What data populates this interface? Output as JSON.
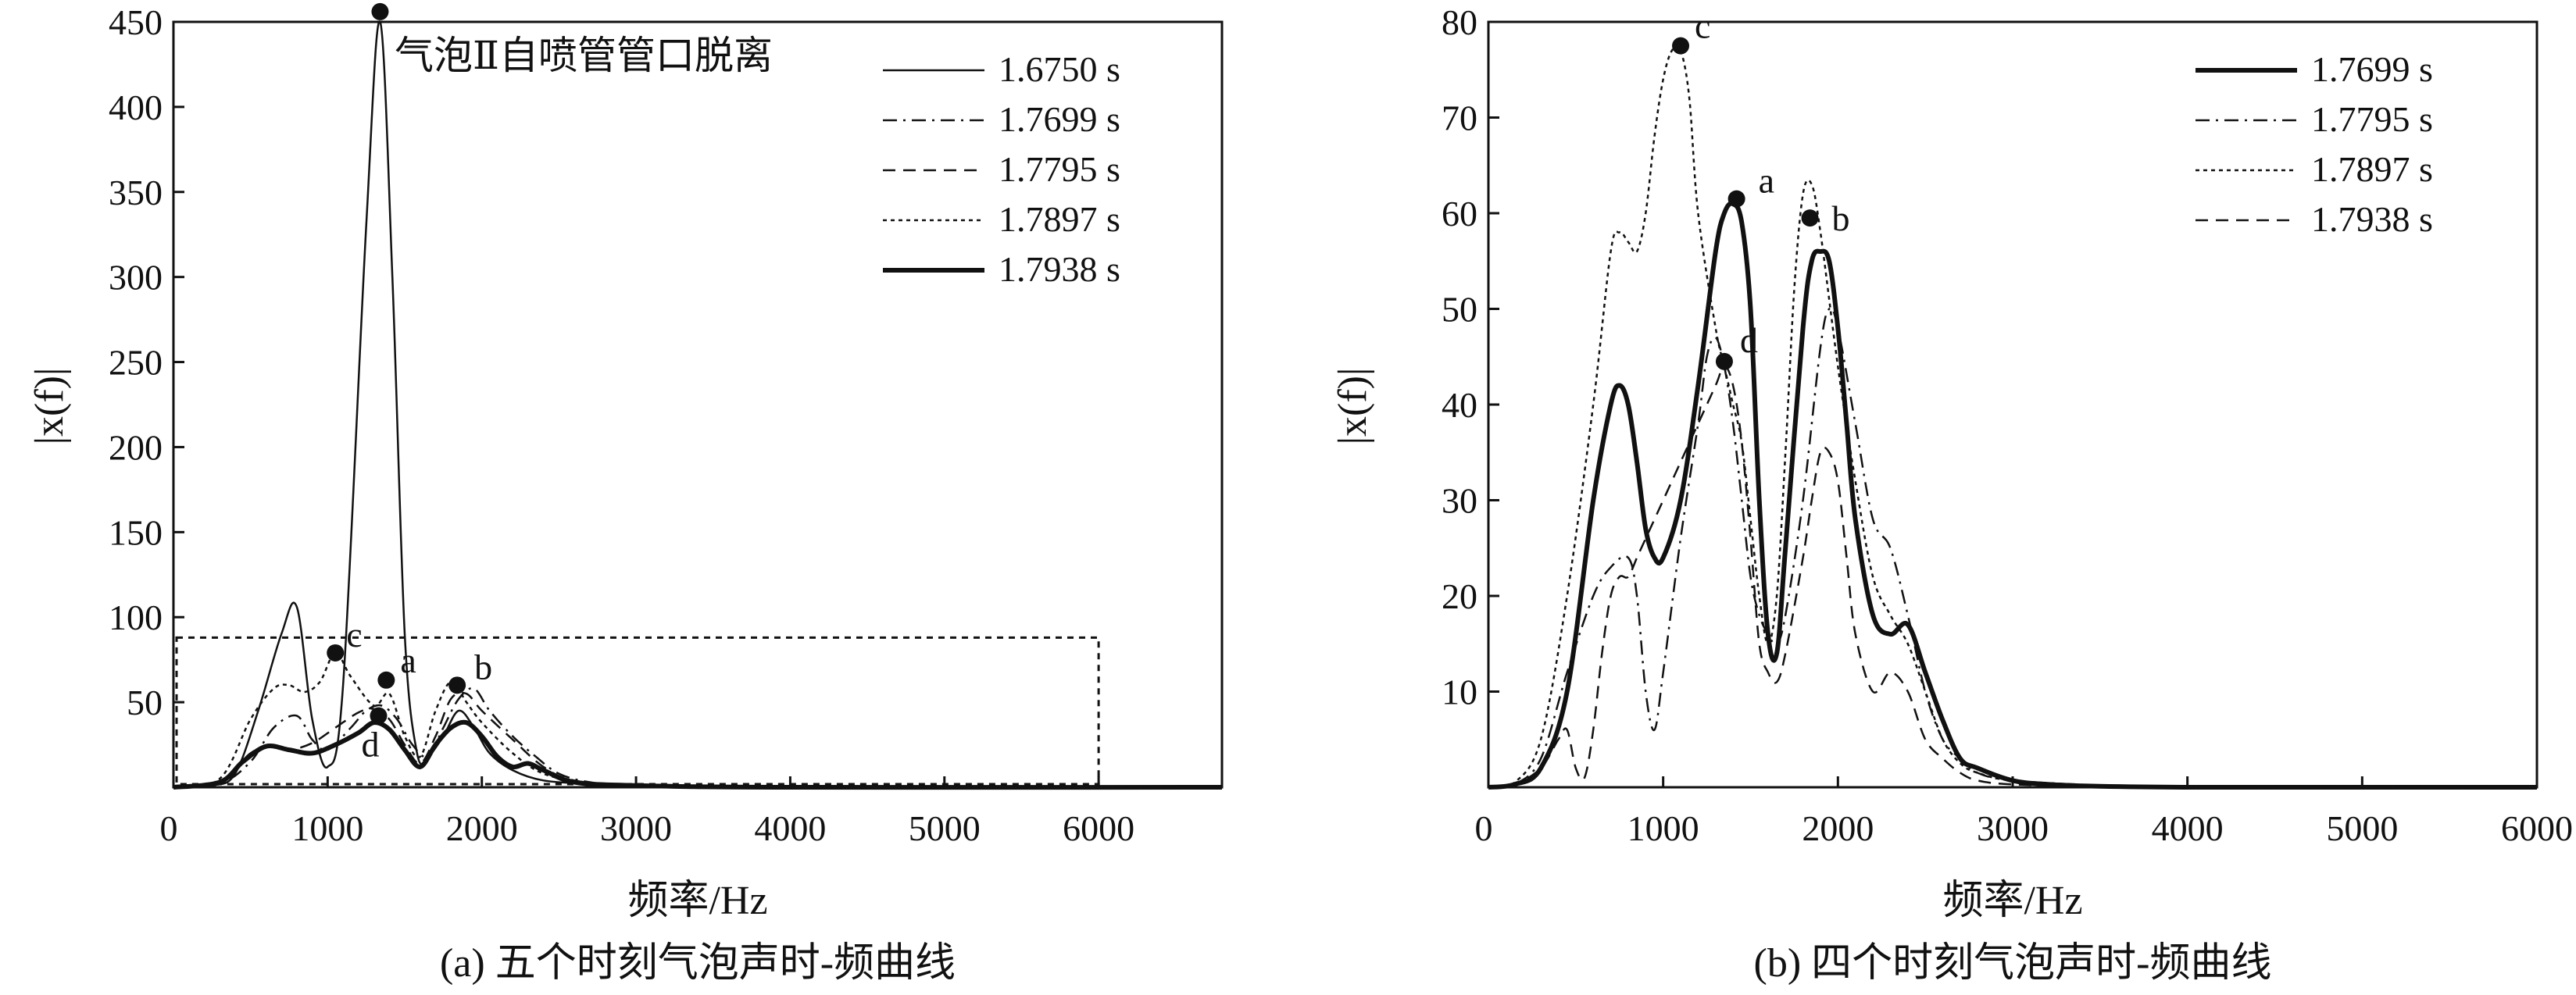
{
  "charts": [
    {
      "id": "a",
      "caption": "(a) 五个时刻气泡声时-频曲线",
      "annotation": "气泡Ⅱ自喷管管口脱离",
      "x_ticks": [
        "0",
        "1000",
        "2000",
        "3000",
        "4000",
        "5000",
        "6000"
      ],
      "y_ticks": [
        "50",
        "100",
        "150",
        "200",
        "250",
        "300",
        "350",
        "400",
        "450"
      ],
      "legend": [
        {
          "label": "1.6750 s",
          "style": "solid"
        },
        {
          "label": "1.7699 s",
          "style": "dashdot"
        },
        {
          "label": "1.7795 s",
          "style": "dashed"
        },
        {
          "label": "1.7897 s",
          "style": "dotted"
        },
        {
          "label": "1.7938 s",
          "style": "thick"
        }
      ],
      "markers": [
        {
          "label": "c",
          "x": 1050,
          "y": 79
        },
        {
          "label": "a",
          "x": 1380,
          "y": 63
        },
        {
          "label": "b",
          "x": 1840,
          "y": 60
        },
        {
          "label": "d",
          "x": 1330,
          "y": 42
        },
        {
          "label": "",
          "x": 1340,
          "y": 456
        }
      ]
    },
    {
      "id": "b",
      "caption": "(b) 四个时刻气泡声时-频曲线",
      "x_ticks": [
        "0",
        "1000",
        "2000",
        "3000",
        "4000",
        "5000",
        "6000"
      ],
      "y_ticks": [
        "10",
        "20",
        "30",
        "40",
        "50",
        "60",
        "70",
        "80"
      ],
      "legend": [
        {
          "label": "1.7699 s",
          "style": "thick"
        },
        {
          "label": "1.7795 s",
          "style": "dashdot"
        },
        {
          "label": "1.7897 s",
          "style": "dotted"
        },
        {
          "label": "1.7938 s",
          "style": "dashed"
        }
      ],
      "markers": [
        {
          "label": "c",
          "x": 1100,
          "y": 77.5
        },
        {
          "label": "a",
          "x": 1420,
          "y": 61.5
        },
        {
          "label": "b",
          "x": 1840,
          "y": 59.5
        },
        {
          "label": "d",
          "x": 1350,
          "y": 44.5
        }
      ]
    }
  ],
  "axis_labels": {
    "x": "频率/Hz",
    "y": "|x(f)|"
  },
  "chart_data": [
    {
      "type": "line",
      "title": "",
      "xlabel": "频率/Hz",
      "ylabel": "|x(f)|",
      "xlim": [
        0,
        6800
      ],
      "ylim": [
        0,
        450
      ],
      "grid": false,
      "legend_position": "top-right",
      "series": [
        {
          "name": "1.6750 s",
          "x": [
            0,
            250,
            400,
            550,
            700,
            800,
            900,
            1000,
            1100,
            1250,
            1340,
            1420,
            1500,
            1580,
            1650,
            1750,
            1850,
            1950,
            2050,
            2200,
            2400,
            2700,
            3000,
            4000,
            6000,
            6800
          ],
          "y": [
            0,
            1,
            8,
            45,
            90,
            106,
            40,
            12,
            60,
            330,
            456,
            300,
            90,
            20,
            18,
            30,
            45,
            35,
            20,
            10,
            4,
            2,
            1,
            0,
            0,
            0
          ]
        },
        {
          "name": "1.7699 s",
          "x": [
            0,
            300,
            500,
            650,
            800,
            900,
            1000,
            1150,
            1250,
            1350,
            1450,
            1550,
            1650,
            1750,
            1850,
            1950,
            2050,
            2200,
            2350,
            2500,
            2700,
            3000,
            4000,
            6800
          ],
          "y": [
            0,
            2,
            15,
            35,
            42,
            28,
            22,
            35,
            45,
            48,
            40,
            25,
            18,
            35,
            52,
            58,
            45,
            30,
            18,
            8,
            3,
            1,
            0,
            0
          ]
        },
        {
          "name": "1.7795 s",
          "x": [
            0,
            300,
            500,
            650,
            750,
            900,
            1050,
            1200,
            1300,
            1400,
            1500,
            1600,
            1700,
            1800,
            1900,
            2000,
            2200,
            2400,
            2600,
            3000,
            4000,
            6800
          ],
          "y": [
            0,
            3,
            20,
            25,
            22,
            26,
            35,
            44,
            46,
            40,
            25,
            14,
            30,
            52,
            55,
            45,
            28,
            12,
            4,
            1,
            0,
            0
          ]
        },
        {
          "name": "1.7897 s",
          "x": [
            0,
            300,
            500,
            650,
            750,
            850,
            950,
            1050,
            1150,
            1300,
            1400,
            1500,
            1600,
            1700,
            1800,
            1900,
            2000,
            2200,
            2400,
            2700,
            3000,
            4000,
            6800
          ],
          "y": [
            0,
            5,
            40,
            58,
            60,
            56,
            62,
            79,
            65,
            48,
            55,
            30,
            18,
            45,
            62,
            50,
            38,
            20,
            8,
            2,
            1,
            0,
            0
          ]
        },
        {
          "name": "1.7938 s",
          "x": [
            0,
            300,
            450,
            600,
            750,
            900,
            1050,
            1200,
            1300,
            1400,
            1500,
            1600,
            1700,
            1800,
            1900,
            2000,
            2100,
            2200,
            2300,
            2400,
            2600,
            3000,
            4000,
            6800
          ],
          "y": [
            0,
            3,
            15,
            24,
            22,
            20,
            25,
            32,
            38,
            34,
            22,
            12,
            25,
            35,
            38,
            30,
            18,
            12,
            14,
            10,
            3,
            1,
            0,
            0
          ]
        }
      ],
      "annotations": [
        {
          "text": "气泡Ⅱ自喷管管口脱离"
        },
        {
          "text": "c",
          "x": 1050,
          "y": 79
        },
        {
          "text": "a",
          "x": 1380,
          "y": 63
        },
        {
          "text": "b",
          "x": 1840,
          "y": 60
        },
        {
          "text": "d",
          "x": 1330,
          "y": 42
        }
      ],
      "zoom_box": {
        "x": [
          0,
          6000
        ],
        "y": [
          0,
          88
        ]
      }
    },
    {
      "type": "line",
      "title": "",
      "xlabel": "频率/Hz",
      "ylabel": "|x(f)|",
      "xlim": [
        0,
        6000
      ],
      "ylim": [
        0,
        80
      ],
      "grid": false,
      "legend_position": "top-right",
      "series": [
        {
          "name": "1.7699 s",
          "x": [
            0,
            150,
            300,
            450,
            600,
            700,
            750,
            800,
            850,
            900,
            950,
            1000,
            1100,
            1200,
            1300,
            1350,
            1400,
            1450,
            1500,
            1550,
            1600,
            1650,
            1700,
            1800,
            1850,
            1900,
            1950,
            2000,
            2050,
            2100,
            2200,
            2300,
            2400,
            2500,
            2600,
            2700,
            2800,
            3000,
            3200,
            3500,
            4000,
            5000,
            6000
          ],
          "y": [
            0,
            0.3,
            2,
            10,
            30,
            40,
            42,
            40,
            34,
            27,
            24,
            24,
            30,
            42,
            56,
            60,
            61,
            59,
            50,
            30,
            16,
            14,
            25,
            48,
            55,
            56,
            55,
            48,
            38,
            28,
            18,
            16,
            17,
            12,
            7,
            3,
            2,
            0.7,
            0.3,
            0.1,
            0,
            0,
            0
          ]
        },
        {
          "name": "1.7795 s",
          "x": [
            0,
            150,
            300,
            450,
            600,
            700,
            800,
            850,
            900,
            950,
            1000,
            1100,
            1200,
            1250,
            1300,
            1350,
            1400,
            1450,
            1500,
            1550,
            1600,
            1650,
            1700,
            1800,
            1900,
            1950,
            2000,
            2100,
            2200,
            2300,
            2400,
            2500,
            2600,
            2700,
            2800,
            3000,
            3500,
            4000,
            6000
          ],
          "y": [
            0,
            0.3,
            3,
            12,
            20,
            23,
            24,
            20,
            10,
            6,
            12,
            26,
            38,
            45,
            47,
            44,
            38,
            30,
            22,
            18,
            16,
            15,
            18,
            30,
            46,
            50,
            48,
            38,
            28,
            25,
            18,
            10,
            5,
            3,
            1.5,
            0.7,
            0.2,
            0,
            0
          ]
        },
        {
          "name": "1.7897 s",
          "x": [
            0,
            150,
            300,
            450,
            600,
            700,
            750,
            800,
            850,
            900,
            950,
            1000,
            1050,
            1100,
            1150,
            1200,
            1300,
            1350,
            1400,
            1450,
            1500,
            1550,
            1600,
            1650,
            1700,
            1750,
            1800,
            1850,
            1900,
            2000,
            2100,
            2200,
            2300,
            2400,
            2500,
            2600,
            2700,
            2800,
            3000,
            3500,
            4000,
            6000
          ],
          "y": [
            0,
            0.5,
            5,
            20,
            40,
            56,
            58,
            57,
            56,
            60,
            68,
            74,
            77,
            77,
            72,
            60,
            48,
            44,
            40,
            36,
            28,
            20,
            15,
            20,
            35,
            52,
            62,
            63,
            58,
            44,
            32,
            22,
            18,
            15,
            10,
            5,
            2.5,
            1.5,
            0.7,
            0.2,
            0,
            0
          ]
        },
        {
          "name": "1.7938 s",
          "x": [
            0,
            150,
            300,
            400,
            450,
            500,
            550,
            600,
            650,
            700,
            750,
            800,
            850,
            900,
            950,
            1000,
            1100,
            1200,
            1300,
            1350,
            1400,
            1450,
            1500,
            1550,
            1600,
            1650,
            1700,
            1800,
            1850,
            1900,
            1950,
            2000,
            2050,
            2100,
            2200,
            2300,
            2400,
            2500,
            2600,
            2700,
            2800,
            3000,
            3500,
            4000,
            6000
          ],
          "y": [
            0,
            0.3,
            2,
            5,
            6,
            2,
            1,
            6,
            14,
            20,
            22,
            22,
            24,
            26,
            28,
            30,
            34,
            38,
            42,
            44,
            42,
            36,
            26,
            15,
            12,
            11,
            14,
            24,
            30,
            35,
            35,
            32,
            24,
            16,
            10,
            12,
            10,
            5,
            3,
            1.5,
            0.7,
            0.3,
            0.1,
            0,
            0
          ]
        }
      ],
      "annotations": [
        {
          "text": "c",
          "x": 1100,
          "y": 77.5
        },
        {
          "text": "a",
          "x": 1420,
          "y": 61.5
        },
        {
          "text": "b",
          "x": 1840,
          "y": 59.5
        },
        {
          "text": "d",
          "x": 1350,
          "y": 44.5
        }
      ]
    }
  ]
}
